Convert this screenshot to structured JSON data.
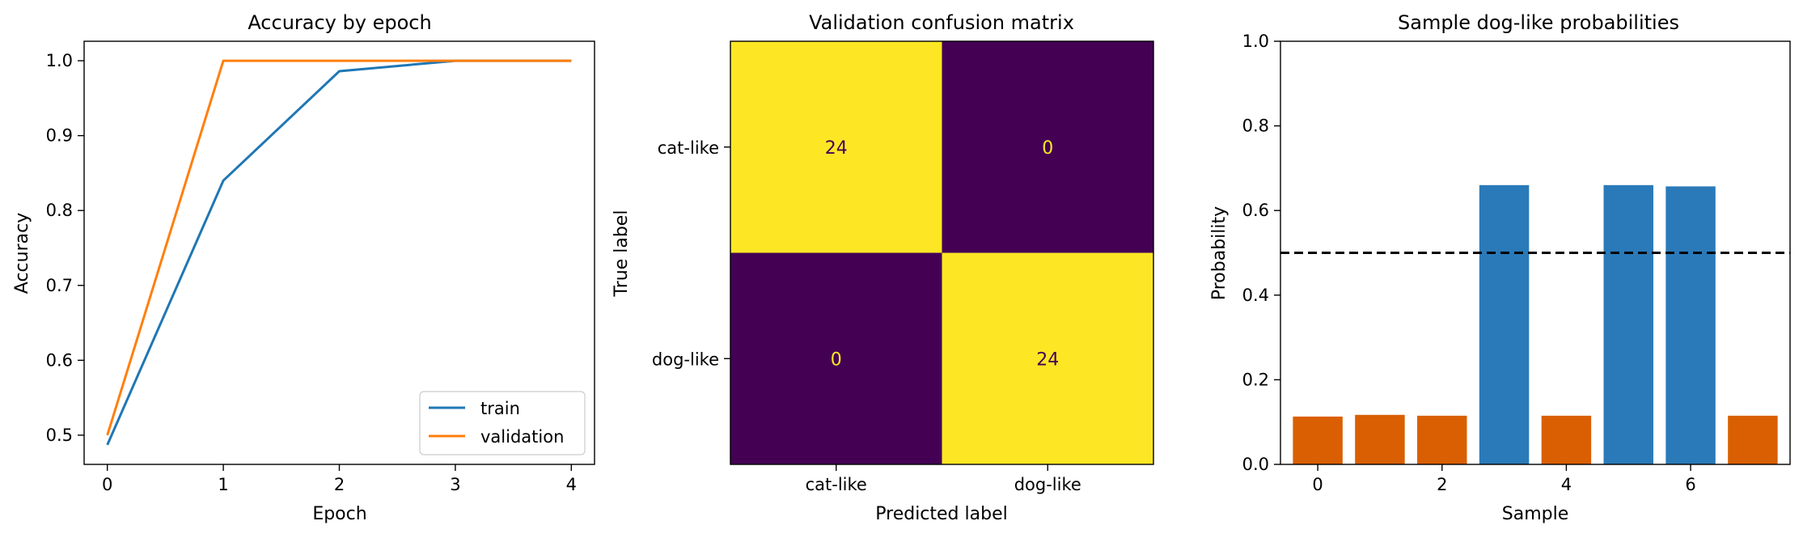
{
  "chart_data": [
    {
      "type": "line",
      "title": "Accuracy by epoch",
      "xlabel": "Epoch",
      "ylabel": "Accuracy",
      "x": [
        0,
        1,
        2,
        3,
        4
      ],
      "xticks": [
        "0",
        "1",
        "2",
        "3",
        "4"
      ],
      "yticks": [
        "0.5",
        "0.6",
        "0.7",
        "0.8",
        "0.9",
        "1.0"
      ],
      "xlim": [
        -0.2,
        4.2
      ],
      "ylim": [
        0.461,
        1.026
      ],
      "grid": false,
      "legend_position": "lower-right",
      "series": [
        {
          "name": "train",
          "color": "#1f77b4",
          "values": [
            0.487,
            0.84,
            0.986,
            1.0,
            1.0
          ]
        },
        {
          "name": "validation",
          "color": "#ff7f0e",
          "values": [
            0.5,
            1.0,
            1.0,
            1.0,
            1.0
          ]
        }
      ]
    },
    {
      "type": "heatmap",
      "title": "Validation confusion matrix",
      "xlabel": "Predicted label",
      "ylabel": "True label",
      "xticks": [
        "cat-like",
        "dog-like"
      ],
      "yticks": [
        "cat-like",
        "dog-like"
      ],
      "matrix": [
        [
          24,
          0
        ],
        [
          0,
          24
        ]
      ],
      "colormap": {
        "high": "#fde725",
        "low": "#440154"
      }
    },
    {
      "type": "bar",
      "title": "Sample dog-like probabilities",
      "xlabel": "Sample",
      "ylabel": "Probability",
      "categories": [
        0,
        1,
        2,
        3,
        4,
        5,
        6,
        7
      ],
      "values": [
        0.113,
        0.117,
        0.115,
        0.66,
        0.115,
        0.66,
        0.657,
        0.115
      ],
      "colors": [
        "#d95f02",
        "#d95f02",
        "#d95f02",
        "#2a7ab9",
        "#d95f02",
        "#2a7ab9",
        "#2a7ab9",
        "#d95f02"
      ],
      "xticks": [
        "0",
        "2",
        "4",
        "6"
      ],
      "yticks": [
        "0.0",
        "0.2",
        "0.4",
        "0.6",
        "0.8",
        "1.0"
      ],
      "ylim": [
        0.0,
        1.0
      ],
      "threshold": 0.5,
      "threshold_style": "dashed"
    }
  ]
}
